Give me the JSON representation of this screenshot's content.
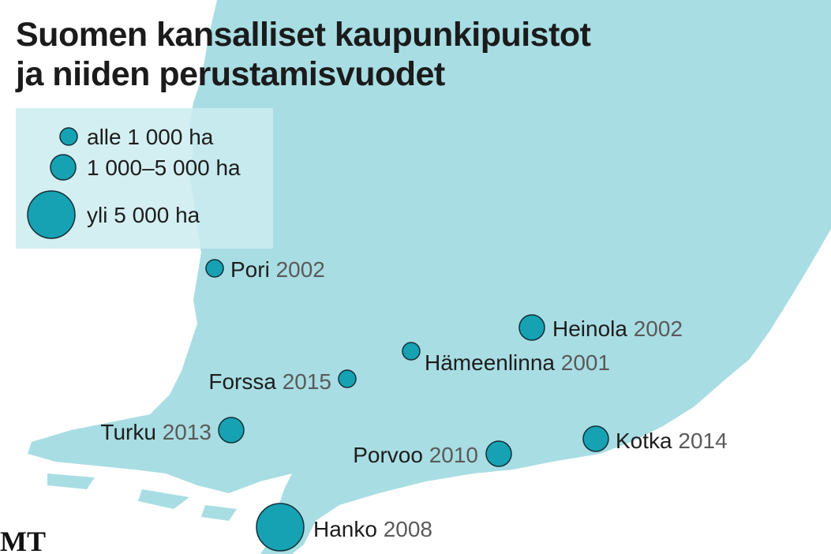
{
  "title": [
    "Suomen kansalliset kaupunkipuistot",
    "ja niiden perustamisvuodet"
  ],
  "legend": [
    "alle 1 000 ha",
    "1 000–5 000 ha",
    "yli 5 000 ha"
  ],
  "cities": [
    {
      "name": "Pori",
      "year": "2002"
    },
    {
      "name": "Heinola",
      "year": "2002"
    },
    {
      "name": "Hämeenlinna",
      "year": "2001"
    },
    {
      "name": "Forssa",
      "year": "2015"
    },
    {
      "name": "Turku",
      "year": "2013"
    },
    {
      "name": "Porvoo",
      "year": "2010"
    },
    {
      "name": "Kotka",
      "year": "2014"
    },
    {
      "name": "Hanko",
      "year": "2008"
    }
  ],
  "logo": "MT"
}
